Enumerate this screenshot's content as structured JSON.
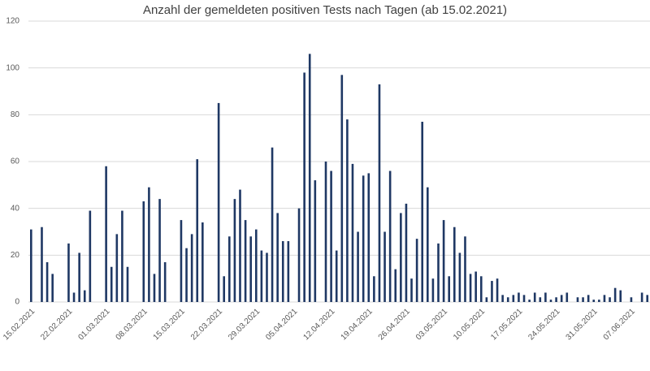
{
  "chart_data": {
    "type": "bar",
    "title": "Anzahl der gemeldeten positiven Tests nach Tagen (ab 15.02.2021)",
    "categories": [
      "15.02.2021",
      null,
      null,
      null,
      null,
      null,
      null,
      "22.02.2021",
      null,
      null,
      null,
      null,
      null,
      null,
      "01.03.2021",
      null,
      null,
      null,
      null,
      null,
      null,
      "08.03.2021",
      null,
      null,
      null,
      null,
      null,
      null,
      "15.03.2021",
      null,
      null,
      null,
      null,
      null,
      null,
      "22.03.2021",
      null,
      null,
      null,
      null,
      null,
      null,
      "29.03.2021",
      null,
      null,
      null,
      null,
      null,
      null,
      "05.04.2021",
      null,
      null,
      null,
      null,
      null,
      null,
      "12.04.2021",
      null,
      null,
      null,
      null,
      null,
      null,
      "19.04.2021",
      null,
      null,
      null,
      null,
      null,
      null,
      "26.04.2021",
      null,
      null,
      null,
      null,
      null,
      null,
      "03.05.2021",
      null,
      null,
      null,
      null,
      null,
      null,
      "10.05.2021",
      null,
      null,
      null,
      null,
      null,
      null,
      "17.05.2021",
      null,
      null,
      null,
      null,
      null,
      null,
      "24.05.2021",
      null,
      null,
      null,
      null,
      null,
      null,
      "31.05.2021",
      null,
      null,
      null,
      null,
      null,
      null,
      "07.06.2021",
      null,
      null,
      null
    ],
    "values": [
      31,
      0,
      32,
      17,
      12,
      0,
      0,
      25,
      4,
      21,
      5,
      39,
      0,
      0,
      58,
      15,
      29,
      39,
      15,
      0,
      0,
      43,
      49,
      12,
      44,
      17,
      0,
      0,
      35,
      23,
      29,
      61,
      34,
      0,
      0,
      85,
      11,
      28,
      44,
      48,
      35,
      28,
      31,
      22,
      21,
      66,
      38,
      26,
      26,
      0,
      40,
      98,
      106,
      52,
      0,
      60,
      56,
      22,
      97,
      78,
      59,
      30,
      54,
      55,
      11,
      93,
      30,
      56,
      14,
      38,
      42,
      10,
      27,
      77,
      49,
      10,
      25,
      35,
      11,
      32,
      21,
      28,
      12,
      13,
      11,
      2,
      9,
      10,
      3,
      2,
      3,
      4,
      3,
      1,
      4,
      2,
      4,
      1,
      2,
      3,
      4,
      0,
      2,
      2,
      3,
      1,
      1,
      3,
      2,
      6,
      5,
      0,
      2,
      0,
      4,
      3
    ],
    "color": "#1f3864",
    "ylim": [
      0,
      120
    ],
    "yticks": [
      0,
      20,
      40,
      60,
      80,
      100,
      120
    ],
    "grid": true
  }
}
